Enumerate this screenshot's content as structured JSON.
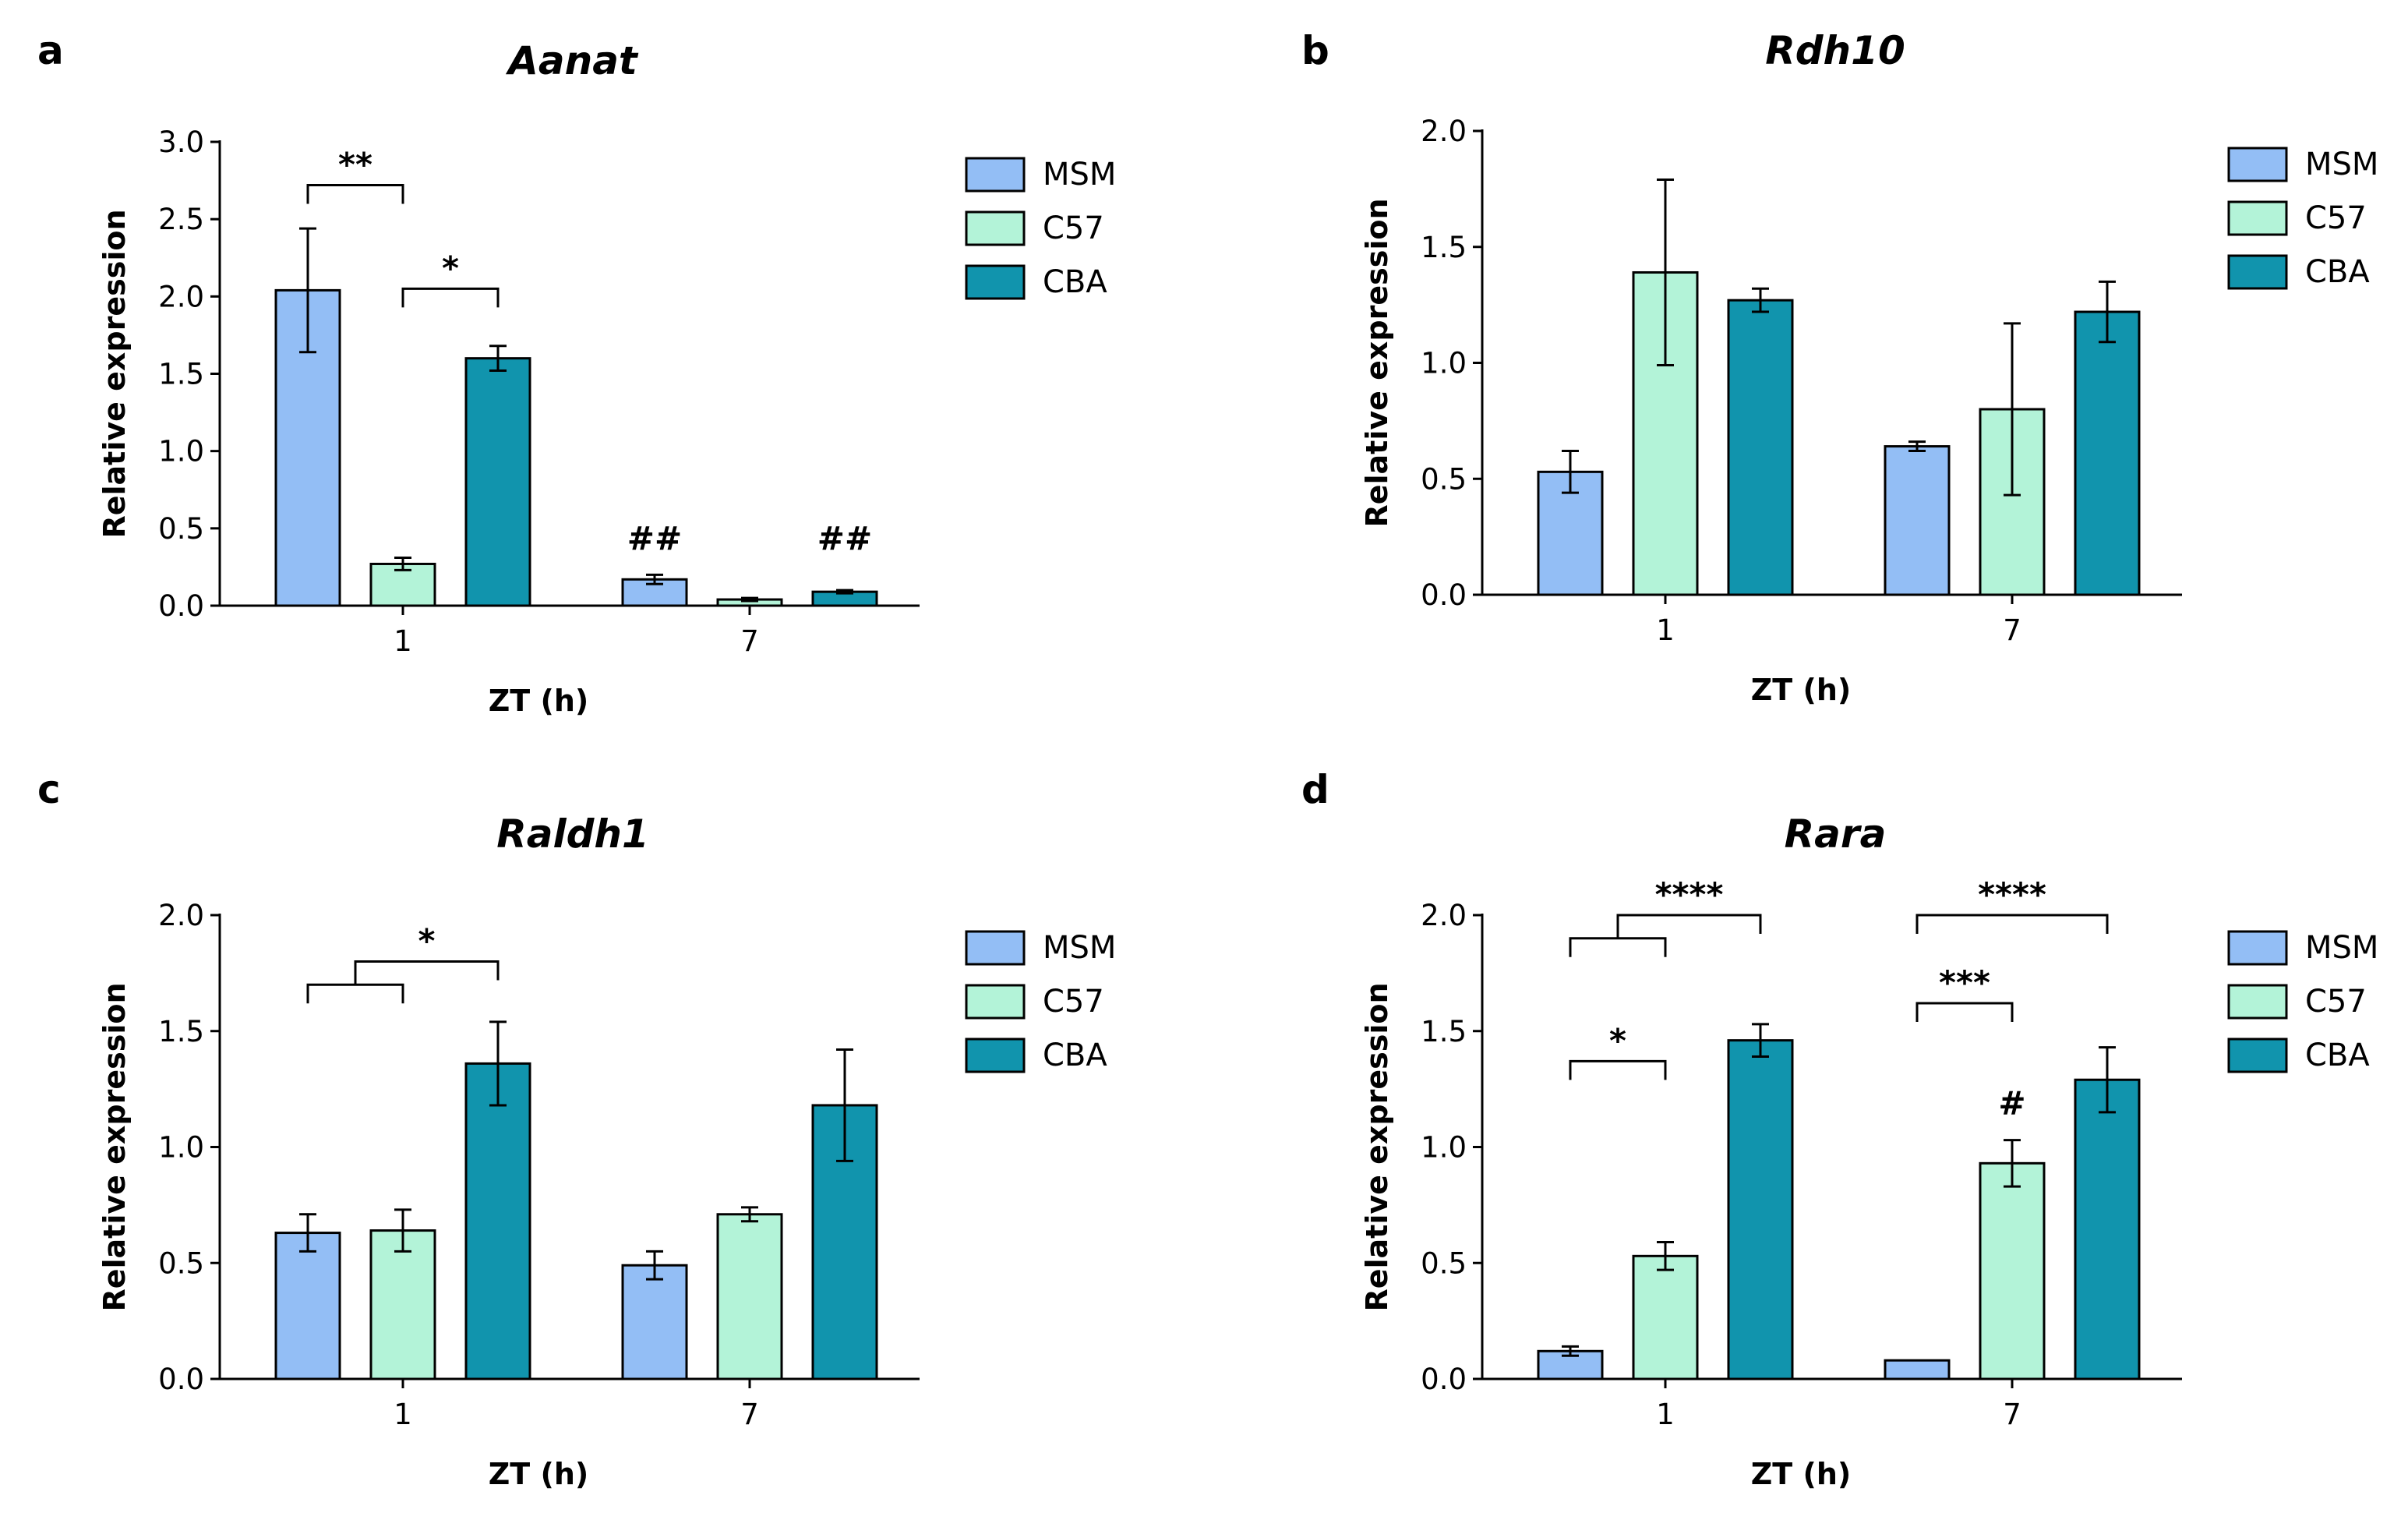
{
  "chart_data": [
    {
      "type": "bar",
      "panel": "a",
      "title": "Aanat",
      "xlabel": "ZT (h)",
      "ylabel": "Relative expression",
      "categories": [
        "1",
        "7"
      ],
      "ylim": [
        0,
        3.0
      ],
      "yticks": [
        "0.0",
        "0.5",
        "1.0",
        "1.5",
        "2.0",
        "2.5",
        "3.0"
      ],
      "legend_position": "top-right",
      "series": [
        {
          "name": "MSM",
          "color": "#93bef5",
          "values": [
            2.04,
            0.17
          ],
          "errors": [
            0.4,
            0.03
          ]
        },
        {
          "name": "C57",
          "color": "#b3f3d8",
          "values": [
            0.27,
            0.04
          ],
          "errors": [
            0.04,
            0.01
          ]
        },
        {
          "name": "CBA",
          "color": "#1194ad",
          "values": [
            1.6,
            0.09
          ],
          "errors": [
            0.08,
            0.01
          ]
        }
      ],
      "brackets": [
        {
          "label": "**",
          "cat": 0,
          "from": 0,
          "to": 1,
          "y": 2.72
        },
        {
          "label": "*",
          "cat": 0,
          "from": 1,
          "to": 2,
          "y": 2.05
        }
      ],
      "marks": [
        {
          "label": "##",
          "cat": 1,
          "series": 0,
          "y": 0.36
        },
        {
          "label": "##",
          "cat": 1,
          "series": 2,
          "y": 0.36
        }
      ]
    },
    {
      "type": "bar",
      "panel": "b",
      "title": "Rdh10",
      "xlabel": "ZT (h)",
      "ylabel": "Relative expression",
      "categories": [
        "1",
        "7"
      ],
      "ylim": [
        0,
        2.0
      ],
      "yticks": [
        "0.0",
        "0.5",
        "1.0",
        "1.5",
        "2.0"
      ],
      "legend_position": "top-right",
      "series": [
        {
          "name": "MSM",
          "color": "#93bef5",
          "values": [
            0.53,
            0.64
          ],
          "errors": [
            0.09,
            0.02
          ]
        },
        {
          "name": "C57",
          "color": "#b3f3d8",
          "values": [
            1.39,
            0.8
          ],
          "errors": [
            0.4,
            0.37
          ]
        },
        {
          "name": "CBA",
          "color": "#1194ad",
          "values": [
            1.27,
            1.22
          ],
          "errors": [
            0.05,
            0.13
          ]
        }
      ],
      "brackets": [],
      "marks": []
    },
    {
      "type": "bar",
      "panel": "c",
      "title": "Raldh1",
      "xlabel": "ZT (h)",
      "ylabel": "Relative expression",
      "categories": [
        "1",
        "7"
      ],
      "ylim": [
        0,
        2.0
      ],
      "yticks": [
        "0.0",
        "0.5",
        "1.0",
        "1.5",
        "2.0"
      ],
      "legend_position": "top-right",
      "series": [
        {
          "name": "MSM",
          "color": "#93bef5",
          "values": [
            0.63,
            0.49
          ],
          "errors": [
            0.08,
            0.06
          ]
        },
        {
          "name": "C57",
          "color": "#b3f3d8",
          "values": [
            0.64,
            0.71
          ],
          "errors": [
            0.09,
            0.03
          ]
        },
        {
          "name": "CBA",
          "color": "#1194ad",
          "values": [
            1.36,
            1.18
          ],
          "errors": [
            0.18,
            0.24
          ]
        }
      ],
      "brackets": [
        {
          "label": "*",
          "cat": 0,
          "from": 0,
          "to": 1,
          "y": 1.7,
          "outer": {
            "to": 2,
            "y": 1.8
          }
        }
      ],
      "marks": []
    },
    {
      "type": "bar",
      "panel": "d",
      "title": "Rara",
      "xlabel": "ZT (h)",
      "ylabel": "Relative expression",
      "categories": [
        "1",
        "7"
      ],
      "ylim": [
        0,
        2.0
      ],
      "yticks": [
        "0.0",
        "0.5",
        "1.0",
        "1.5",
        "2.0"
      ],
      "legend_position": "top-right",
      "series": [
        {
          "name": "MSM",
          "color": "#93bef5",
          "values": [
            0.12,
            0.08
          ],
          "errors": [
            0.02,
            0.005
          ]
        },
        {
          "name": "C57",
          "color": "#b3f3d8",
          "values": [
            0.53,
            0.93
          ],
          "errors": [
            0.06,
            0.1
          ]
        },
        {
          "name": "CBA",
          "color": "#1194ad",
          "values": [
            1.46,
            1.29
          ],
          "errors": [
            0.07,
            0.14
          ]
        }
      ],
      "brackets": [
        {
          "label": "****",
          "cat": 0,
          "from": 0,
          "to": 1,
          "y": 1.9,
          "outer": {
            "to": 2,
            "y": 2.0
          }
        },
        {
          "label": "*",
          "cat": 0,
          "from": 0,
          "to": 1,
          "y": 1.37
        },
        {
          "label": "****",
          "cat": 1,
          "from": 0,
          "to": 2,
          "y": 2.0
        },
        {
          "label": "***",
          "cat": 1,
          "from": 0,
          "to": 1,
          "y": 1.62
        }
      ],
      "marks": [
        {
          "label": "#",
          "cat": 1,
          "series": 1,
          "y": 1.14
        }
      ]
    }
  ]
}
